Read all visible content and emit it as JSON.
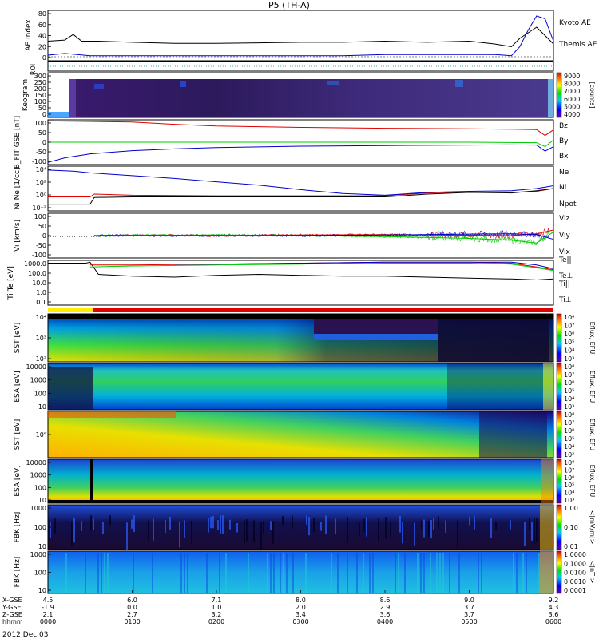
{
  "chart_data": {
    "type": "line",
    "title": "P5 (TH-A)",
    "date_label": "2012 Dec 03",
    "x_axis": {
      "row_labels": [
        "X-GSE",
        "Y-GSE",
        "Z-GSE",
        "hhmm"
      ],
      "rows": [
        [
          "4.5",
          "6.0",
          "7.1",
          "8.0",
          "8.6",
          "9.0",
          "9.2"
        ],
        [
          "-1.9",
          "0.0",
          "1.0",
          "2.0",
          "2.9",
          "3.7",
          "4.3"
        ],
        [
          "2.1",
          "2.7",
          "3.2",
          "3.4",
          "3.6",
          "3.7",
          "3.6"
        ],
        [
          "0000",
          "0100",
          "0200",
          "0300",
          "0400",
          "0500",
          "0600"
        ]
      ],
      "time_range": [
        "0000",
        "0600"
      ]
    },
    "panels": [
      {
        "id": "ae",
        "ylabel": "AE Index",
        "yticks": [
          "80",
          "60",
          "40",
          "20",
          "0"
        ],
        "ylim": [
          -5,
          85
        ],
        "series": [
          {
            "name": "Kyoto AE",
            "color": "#0000cc",
            "x": [
              0,
              0.2,
              0.5,
              1.0,
              1.5,
              2.0,
              2.5,
              3.0,
              3.5,
              4.0,
              4.5,
              5.0,
              5.3,
              5.5,
              5.6,
              5.7,
              5.8,
              5.9,
              6.0
            ],
            "y": [
              5,
              8,
              4,
              4,
              4,
              4,
              4,
              4,
              4,
              6,
              6,
              6,
              6,
              4,
              20,
              50,
              75,
              70,
              30
            ]
          },
          {
            "name": "Themis AE",
            "color": "#000000",
            "x": [
              0,
              0.2,
              0.3,
              0.4,
              0.6,
              1.0,
              1.5,
              2.0,
              2.5,
              3.0,
              3.5,
              4.0,
              4.5,
              5.0,
              5.3,
              5.5,
              5.6,
              5.7,
              5.8,
              5.9,
              6.0
            ],
            "y": [
              30,
              32,
              42,
              30,
              30,
              28,
              26,
              26,
              27,
              28,
              28,
              30,
              28,
              30,
              25,
              20,
              35,
              45,
              55,
              40,
              25
            ]
          }
        ]
      },
      {
        "id": "roi",
        "ylabel": "ROI"
      },
      {
        "id": "keogram",
        "ylabel": "Keogram",
        "yticks": [
          "300",
          "250",
          "200",
          "150",
          "100",
          "50",
          "0"
        ],
        "colorbar": {
          "label": "[counts]",
          "ticks": [
            "9000",
            "8000",
            "7000",
            "6000",
            "5000",
            "4000"
          ]
        }
      },
      {
        "id": "bfield",
        "ylabel": "B_FIT GSE [nT]",
        "yticks": [
          "100",
          "50",
          "0",
          "-50",
          "-100"
        ],
        "ylim": [
          -100,
          100
        ],
        "series": [
          {
            "name": "Bz",
            "color": "#dd0000",
            "x": [
              0,
              0.5,
              1.0,
              1.5,
              2.0,
              3.0,
              4.0,
              5.0,
              5.5,
              5.8,
              5.9,
              6.0
            ],
            "y": [
              95,
              93,
              90,
              80,
              72,
              66,
              62,
              60,
              58,
              56,
              30,
              55
            ]
          },
          {
            "name": "By",
            "color": "#00cc00",
            "x": [
              0,
              1,
              2,
              3,
              4,
              5,
              5.8,
              5.9,
              6.0
            ],
            "y": [
              0,
              0,
              0,
              0,
              0,
              0,
              -2,
              -20,
              10
            ]
          },
          {
            "name": "Bx",
            "color": "#0000cc",
            "x": [
              0,
              0.2,
              0.5,
              1.0,
              1.5,
              2.0,
              3.0,
              4.0,
              5.0,
              5.5,
              5.8,
              5.9,
              6.0
            ],
            "y": [
              -90,
              -70,
              -52,
              -38,
              -30,
              -24,
              -18,
              -15,
              -13,
              -12,
              -13,
              -40,
              -20
            ]
          }
        ]
      },
      {
        "id": "density",
        "ylabel": "Ni Ne [1/cc]",
        "yticks": [
          "10⁴",
          "10²",
          "10⁰",
          "10⁻²"
        ],
        "ylim": [
          -3,
          5
        ],
        "series": [
          {
            "name": "Ne",
            "color": "#dd0000",
            "x": [
              0,
              0.5,
              0.55,
              1.0,
              2.0,
              3.0,
              4.0,
              4.5,
              5.0,
              5.5,
              5.8,
              6.0
            ],
            "y": [
              -0.5,
              -0.5,
              0,
              -0.2,
              -0.3,
              -0.3,
              -0.3,
              0.2,
              0.4,
              0.3,
              0.5,
              1.0
            ]
          },
          {
            "name": "Ni",
            "color": "#0000cc",
            "x": [
              0,
              0.3,
              0.5,
              1.0,
              1.5,
              2.0,
              2.5,
              3.0,
              3.5,
              4.0,
              4.5,
              5.0,
              5.5,
              5.8,
              6.0
            ],
            "y": [
              4.3,
              4.1,
              3.8,
              3.3,
              2.8,
              2.2,
              1.6,
              0.8,
              0.1,
              -0.2,
              0.3,
              0.5,
              0.6,
              1.0,
              1.5
            ]
          },
          {
            "name": "Npot",
            "color": "#000000",
            "x": [
              0,
              0.5,
              0.55,
              1.0,
              2.0,
              3.0,
              4.0,
              4.5,
              5.0,
              5.5,
              5.8,
              6.0
            ],
            "y": [
              -1.8,
              -1.8,
              -0.6,
              -0.5,
              -0.5,
              -0.5,
              -0.5,
              0,
              0.3,
              0.2,
              0.6,
              1.0
            ]
          }
        ]
      },
      {
        "id": "velocity",
        "ylabel": "Vi [km/s]",
        "yticks": [
          "100",
          "50",
          "0",
          "-50",
          "-100"
        ],
        "ylim": [
          -120,
          120
        ],
        "series": [
          {
            "name": "Viz",
            "color": "#dd0000",
            "x": [
              0.55,
              1,
              2,
              3,
              4,
              5,
              5.5,
              5.8,
              6.0
            ],
            "y": [
              0,
              2,
              0,
              3,
              5,
              2,
              0,
              10,
              30
            ]
          },
          {
            "name": "Viy",
            "color": "#00cc00",
            "x": [
              0.55,
              1,
              2,
              3,
              4,
              5,
              5.5,
              5.8,
              6.0
            ],
            "y": [
              0,
              2,
              3,
              0,
              -5,
              -15,
              -25,
              -40,
              20
            ]
          },
          {
            "name": "Vix",
            "color": "#0000cc",
            "x": [
              0.55,
              1,
              2,
              3,
              4,
              5,
              5.5,
              5.8,
              6.0
            ],
            "y": [
              0,
              0,
              0,
              0,
              3,
              8,
              10,
              5,
              -20
            ]
          }
        ]
      },
      {
        "id": "temperature",
        "ylabel": "Ti Te [eV]",
        "yticks": [
          "1000.0",
          "100.0",
          "10.0",
          "1.0",
          "0.1"
        ],
        "ylim": [
          -1.3,
          3.5
        ],
        "series": [
          {
            "name": "Te||",
            "color": "#000000",
            "x": [
              0,
              0.45,
              0.5,
              0.6,
              1.0,
              1.5,
              2.0,
              2.5,
              3.0,
              3.5,
              4.0,
              4.5,
              5.0,
              5.5,
              5.8,
              6.0
            ],
            "y": [
              3.2,
              3.2,
              3.3,
              2.0,
              1.8,
              1.7,
              1.9,
              2.0,
              1.9,
              1.8,
              1.8,
              1.7,
              1.6,
              1.5,
              1.4,
              1.5
            ]
          },
          {
            "name": "Te⊥",
            "color": "#dd0000",
            "x": [
              0.5,
              1.0,
              2.0,
              3.0,
              4.0,
              5.0,
              5.5,
              5.8,
              6.0
            ],
            "y": [
              3.0,
              3.0,
              3.1,
              3.2,
              3.3,
              3.3,
              3.2,
              2.8,
              2.5
            ]
          },
          {
            "name": "Ti||",
            "color": "#00cc00",
            "x": [
              0.5,
              1.0,
              2.0,
              3.0,
              4.0,
              5.0,
              5.5,
              5.8,
              6.0
            ],
            "y": [
              2.8,
              2.9,
              3.0,
              3.1,
              3.2,
              3.2,
              3.1,
              2.7,
              2.4
            ]
          },
          {
            "name": "Ti⊥",
            "color": "#0000cc",
            "x": [
              1.5,
              2.0,
              3.0,
              4.0,
              5.0,
              5.5,
              5.8,
              6.0
            ],
            "y": [
              3.1,
              3.1,
              3.2,
              3.3,
              3.3,
              3.3,
              3.0,
              2.6
            ]
          }
        ]
      },
      {
        "id": "sst-ion",
        "ylabel": "SST [eV]",
        "yticks": [
          "10⁴",
          "10³",
          "10²"
        ],
        "colorbar": {
          "label": "Eflux, EFU",
          "ticks": [
            "10⁸",
            "10⁷",
            "10⁶",
            "10⁵",
            "10⁴",
            "10³"
          ]
        }
      },
      {
        "id": "esa-ion",
        "ylabel": "ESA [eV]",
        "yticks": [
          "10000",
          "1000",
          "100",
          "10"
        ],
        "colorbar": {
          "label": "Eflux, EFU",
          "ticks": [
            "10⁸",
            "10⁷",
            "10⁶",
            "10⁵",
            "10⁴",
            "10³"
          ]
        }
      },
      {
        "id": "sst-elec",
        "ylabel": "SST [eV]",
        "yticks": [
          "10⁵"
        ],
        "colorbar": {
          "label": "Eflux, EFU",
          "ticks": [
            "10⁸",
            "10⁷",
            "10⁶",
            "10⁵",
            "10⁴",
            "10³"
          ]
        }
      },
      {
        "id": "esa-elec",
        "ylabel": "ESA [eV]",
        "yticks": [
          "10000",
          "1000",
          "100",
          "10"
        ],
        "colorbar": {
          "label": "Eflux, EFU",
          "ticks": [
            "10⁸",
            "10⁷",
            "10⁶",
            "10⁵",
            "10⁴",
            "10³"
          ]
        }
      },
      {
        "id": "fbk-e",
        "ylabel": "FBK [Hz]",
        "yticks": [
          "1000",
          "100",
          "10"
        ],
        "colorbar": {
          "label": "<|mV/m|>",
          "ticks": [
            "1.00",
            "0.10",
            "0.01"
          ]
        }
      },
      {
        "id": "fbk-b",
        "ylabel": "FBK [Hz]",
        "yticks": [
          "1000",
          "100",
          "10"
        ],
        "colorbar": {
          "label": "<|nT|>",
          "ticks": [
            "1.0000",
            "0.1000",
            "0.0100",
            "0.0010",
            "0.0001"
          ]
        }
      }
    ]
  }
}
